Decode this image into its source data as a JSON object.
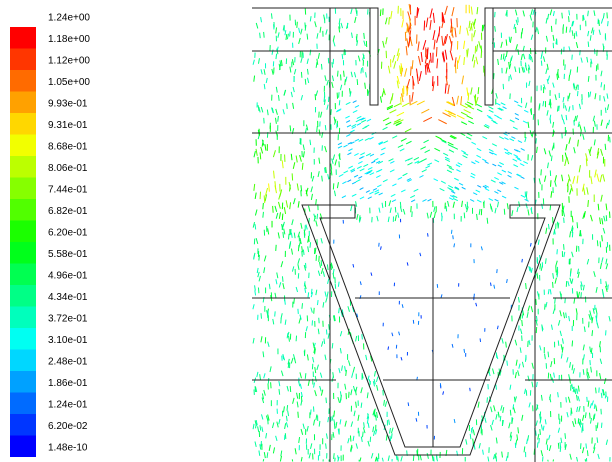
{
  "colorbar": {
    "labels": [
      "1.24e+00",
      "1.18e+00",
      "1.12e+00",
      "1.05e+00",
      "9.93e-01",
      "9.31e-01",
      "8.68e-01",
      "8.06e-01",
      "7.44e-01",
      "6.82e-01",
      "6.20e-01",
      "5.58e-01",
      "4.96e-01",
      "4.34e-01",
      "3.72e-01",
      "3.10e-01",
      "2.48e-01",
      "1.86e-01",
      "1.24e-01",
      "6.20e-02",
      "1.48e-10"
    ]
  }
}
